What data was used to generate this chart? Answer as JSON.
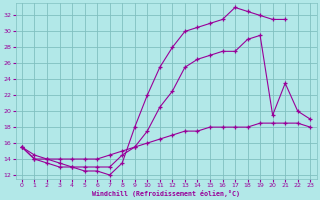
{
  "bg_color": "#b2e8e8",
  "grid_color": "#80c0c0",
  "line_color": "#990099",
  "xlabel": "Windchill (Refroidissement éolien,°C)",
  "xlim": [
    -0.5,
    23.5
  ],
  "ylim": [
    11.5,
    33.5
  ],
  "yticks": [
    12,
    14,
    16,
    18,
    20,
    22,
    24,
    26,
    28,
    30,
    32
  ],
  "xticks": [
    0,
    1,
    2,
    3,
    4,
    5,
    6,
    7,
    8,
    9,
    10,
    11,
    12,
    13,
    14,
    15,
    16,
    17,
    18,
    19,
    20,
    21,
    22,
    23
  ],
  "line1_x": [
    0,
    1,
    2,
    3,
    4,
    5,
    6,
    7,
    8,
    9,
    10,
    11,
    12,
    13,
    14,
    15,
    16,
    17,
    18,
    19,
    20,
    21
  ],
  "line1_y": [
    15.5,
    14.0,
    14.0,
    13.5,
    13.0,
    12.5,
    12.5,
    12.0,
    13.5,
    18.0,
    22.0,
    25.5,
    28.0,
    30.0,
    30.5,
    31.0,
    31.5,
    33.0,
    32.5,
    32.0,
    31.5,
    31.5
  ],
  "line2_x": [
    0,
    1,
    2,
    3,
    4,
    5,
    6,
    7,
    8,
    9,
    10,
    11,
    12,
    13,
    14,
    15,
    16,
    17,
    18,
    19,
    20,
    21,
    22,
    23
  ],
  "line2_y": [
    15.5,
    14.0,
    13.5,
    13.0,
    13.0,
    13.0,
    13.0,
    13.0,
    14.5,
    15.5,
    17.5,
    20.5,
    22.5,
    25.5,
    26.5,
    27.0,
    27.5,
    27.5,
    29.0,
    29.5,
    19.5,
    23.5,
    20.0,
    19.0
  ],
  "line3_x": [
    0,
    1,
    2,
    3,
    4,
    5,
    6,
    7,
    8,
    9,
    10,
    11,
    12,
    13,
    14,
    15,
    16,
    17,
    18,
    19,
    20,
    21,
    22,
    23
  ],
  "line3_y": [
    15.5,
    14.5,
    14.0,
    14.0,
    14.0,
    14.0,
    14.0,
    14.5,
    15.0,
    15.5,
    16.0,
    16.5,
    17.0,
    17.5,
    17.5,
    18.0,
    18.0,
    18.0,
    18.0,
    18.5,
    18.5,
    18.5,
    18.5,
    18.0
  ]
}
